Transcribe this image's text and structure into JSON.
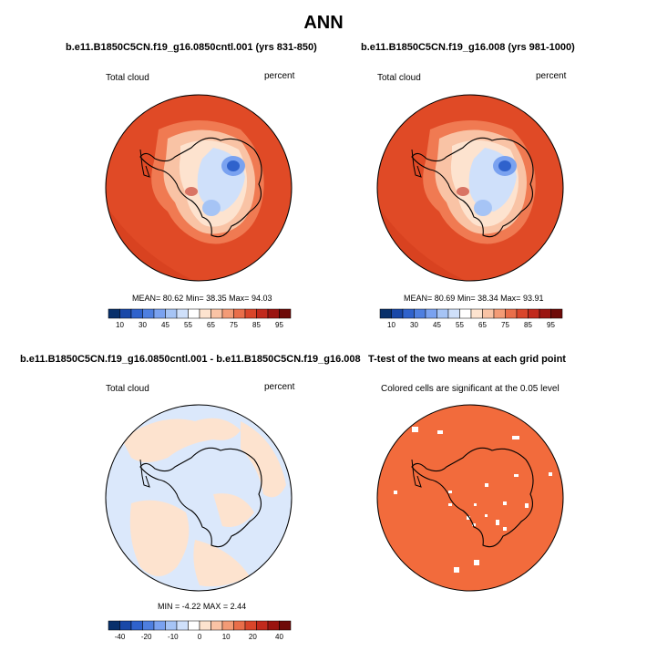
{
  "figure": {
    "title": "ANN"
  },
  "panels": [
    {
      "title": "b.e11.B1850C5CN.f19_g16.0850cntl.001 (yrs 831-850)",
      "left_label": "Total cloud",
      "right_label": "percent",
      "stats": {
        "mean_label": "MEAN=",
        "mean": "80.62",
        "min_label": "Min=",
        "min": "38.35",
        "max_label": "Max=",
        "max": "94.03"
      }
    },
    {
      "title": "b.e11.B1850C5CN.f19_g16.008 (yrs 981-1000)",
      "left_label": "Total cloud",
      "right_label": "percent",
      "stats": {
        "mean_label": "MEAN=",
        "mean": "80.69",
        "min_label": "Min=",
        "min": "38.34",
        "max_label": "Max=",
        "max": "93.91"
      }
    },
    {
      "title": "b.e11.B1850C5CN.f19_g16.0850cntl.001 - b.e11.B1850C5CN.f19_g16.008",
      "left_label": "Total cloud",
      "right_label": "percent",
      "stats": {
        "min_label": "MIN =",
        "min": "-4.22",
        "max_label": "MAX =",
        "max": "2.44"
      }
    },
    {
      "title": "T-test of the two means at each grid point",
      "subtitle": "Colored cells are significant at the 0.05 level"
    }
  ],
  "colorbars": {
    "abs": {
      "labels": [
        "10",
        "30",
        "45",
        "55",
        "65",
        "75",
        "85",
        "95"
      ],
      "colors": [
        "#08306b",
        "#1948a8",
        "#2f62cc",
        "#4e7fe0",
        "#7aa2f0",
        "#a6c4f5",
        "#cfe0fa",
        "#ffffff",
        "#fde3cf",
        "#f9c3a5",
        "#f39b76",
        "#e96e4a",
        "#d9452a",
        "#c1291c",
        "#9a1410",
        "#6e0a08"
      ]
    },
    "diff": {
      "labels": [
        "-40",
        "-20",
        "-10",
        "0",
        "10",
        "20",
        "40"
      ],
      "colors": [
        "#08306b",
        "#1948a8",
        "#2f62cc",
        "#4e7fe0",
        "#7aa2f0",
        "#a6c4f5",
        "#cfe0fa",
        "#ffffff",
        "#fde3cf",
        "#f9c3a5",
        "#f39b76",
        "#e96e4a",
        "#d9452a",
        "#c1291c",
        "#9a1410",
        "#6e0a08"
      ]
    }
  },
  "chart_data": [
    {
      "type": "heatmap",
      "title": "b.e11.B1850C5CN.f19_g16.0850cntl.001 (yrs 831-850)",
      "variable": "Total cloud",
      "units": "percent",
      "projection": "south polar stereographic",
      "mean": 80.62,
      "min": 38.35,
      "max": 94.03,
      "colorbar_levels": [
        10,
        30,
        45,
        55,
        65,
        75,
        85,
        95
      ]
    },
    {
      "type": "heatmap",
      "title": "b.e11.B1850C5CN.f19_g16.008 (yrs 981-1000)",
      "variable": "Total cloud",
      "units": "percent",
      "projection": "south polar stereographic",
      "mean": 80.69,
      "min": 38.34,
      "max": 93.91,
      "colorbar_levels": [
        10,
        30,
        45,
        55,
        65,
        75,
        85,
        95
      ]
    },
    {
      "type": "heatmap",
      "title": "b.e11.B1850C5CN.f19_g16.0850cntl.001 - b.e11.B1850C5CN.f19_g16.008",
      "variable": "Total cloud",
      "units": "percent",
      "projection": "south polar stereographic",
      "min": -4.22,
      "max": 2.44,
      "colorbar_levels": [
        -40,
        -20,
        -10,
        0,
        10,
        20,
        40
      ]
    },
    {
      "type": "heatmap",
      "title": "T-test of the two means at each grid point",
      "subtitle": "Colored cells are significant at the 0.05 level",
      "projection": "south polar stereographic"
    }
  ]
}
